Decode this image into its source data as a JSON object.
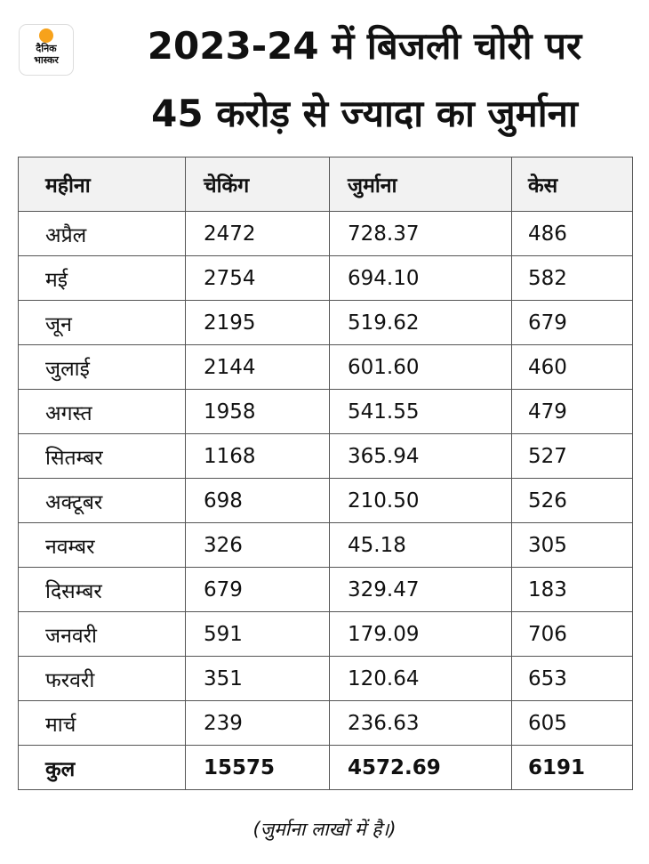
{
  "logo": {
    "line1": "दैनिक",
    "line2": "भास्कर"
  },
  "header": {
    "title_line1": "2023-24 में बिजली चोरी पर",
    "title_line2": "45 करोड़ से ज्यादा का जुर्माना"
  },
  "table": {
    "columns": [
      "महीना",
      "चेकिंग",
      "जुर्माना",
      "केस"
    ],
    "rows": [
      [
        "अप्रैल",
        "2472",
        "728.37",
        "486"
      ],
      [
        "मई",
        "2754",
        "694.10",
        "582"
      ],
      [
        "जून",
        "2195",
        "519.62",
        "679"
      ],
      [
        "जुलाई",
        "2144",
        "601.60",
        "460"
      ],
      [
        "अगस्त",
        "1958",
        "541.55",
        "479"
      ],
      [
        "सितम्बर",
        "1168",
        "365.94",
        "527"
      ],
      [
        "अक्टूबर",
        "698",
        "210.50",
        "526"
      ],
      [
        "नवम्बर",
        "326",
        "45.18",
        "305"
      ],
      [
        "दिसम्बर",
        "679",
        "329.47",
        "183"
      ],
      [
        "जनवरी",
        "591",
        "179.09",
        "706"
      ],
      [
        "फरवरी",
        "351",
        "120.64",
        "653"
      ],
      [
        "मार्च",
        "239",
        "236.63",
        "605"
      ]
    ],
    "total": [
      "कुल",
      "15575",
      "4572.69",
      "6191"
    ]
  },
  "footnote": "(जुर्माना लाखों में है।)"
}
